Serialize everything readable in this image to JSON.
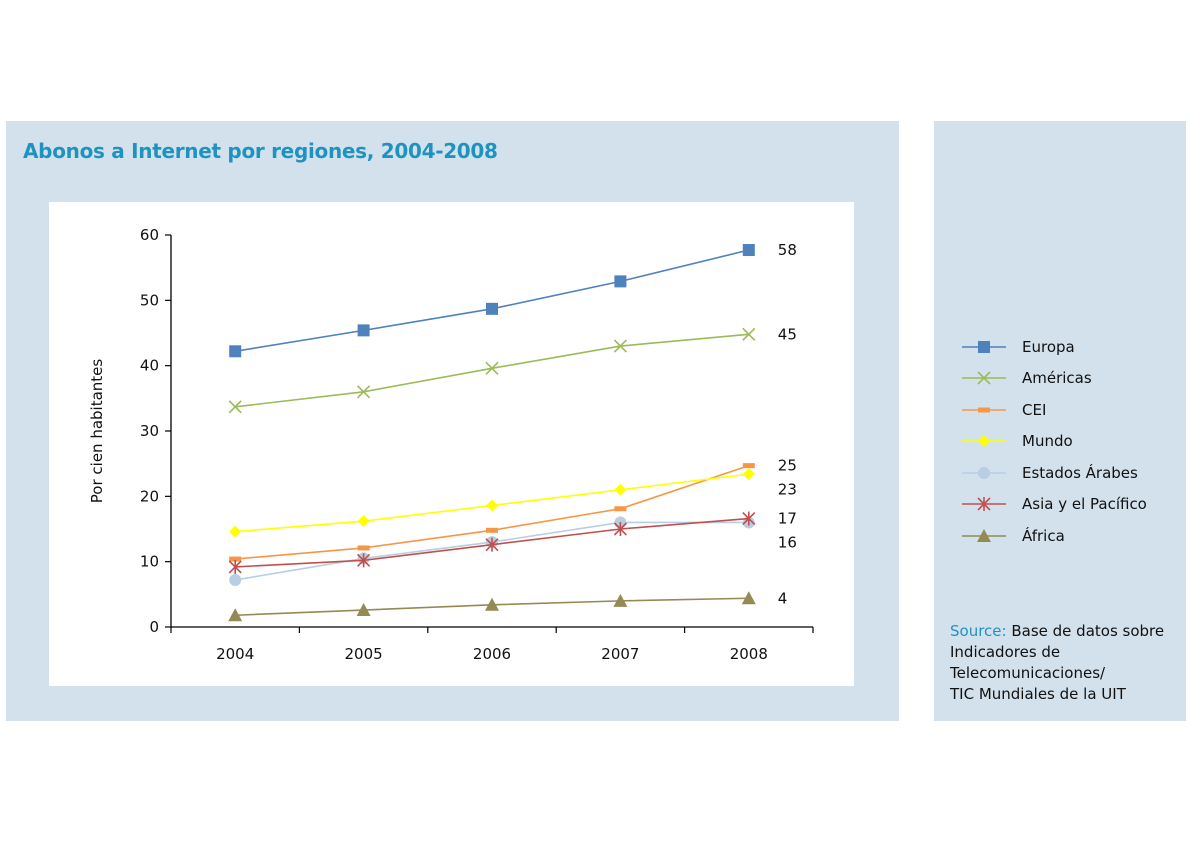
{
  "chart_data": {
    "type": "line",
    "title": "Abonos a Internet por regiones, 2004-2008",
    "ylabel": "Por cien habitantes",
    "xlabel": "",
    "ylim": [
      0,
      60
    ],
    "yticks": [
      "0",
      "10",
      "20",
      "30",
      "40",
      "50",
      "60"
    ],
    "categories": [
      "2004",
      "2005",
      "2006",
      "2007",
      "2008"
    ],
    "legend_position": "right",
    "series": [
      {
        "name": "Europa",
        "values": [
          42.2,
          45.4,
          48.7,
          52.9,
          57.7
        ],
        "end_label": "58",
        "color": "#4f81bd",
        "marker": "square"
      },
      {
        "name": "Américas",
        "values": [
          33.7,
          36.0,
          39.6,
          43.0,
          44.8
        ],
        "end_label": "45",
        "color": "#9bbb59",
        "marker": "x"
      },
      {
        "name": "CEI",
        "values": [
          10.4,
          12.1,
          14.8,
          18.1,
          24.7
        ],
        "end_label": "25",
        "color": "#f79646",
        "marker": "dash"
      },
      {
        "name": "Mundo",
        "values": [
          14.6,
          16.2,
          18.6,
          21.0,
          23.4
        ],
        "end_label": "23",
        "color": "#ffff00",
        "marker": "diamond"
      },
      {
        "name": "Estados Árabes",
        "values": [
          7.2,
          10.5,
          13.0,
          16.0,
          16.0
        ],
        "end_label": "16",
        "color": "#b9cde5",
        "marker": "circle"
      },
      {
        "name": "Asia y el Pacífico",
        "values": [
          9.2,
          10.2,
          12.6,
          15.0,
          16.6
        ],
        "end_label": "17",
        "color": "#c0504d",
        "marker": "star"
      },
      {
        "name": "África",
        "values": [
          1.8,
          2.6,
          3.4,
          4.0,
          4.4
        ],
        "end_label": "4",
        "color": "#948a54",
        "marker": "triangle"
      }
    ]
  },
  "source": {
    "key": "Source:",
    "text": "Base de datos sobre\n Indicadores de Telecomunicaciones/\nTIC Mundiales de la UIT"
  }
}
